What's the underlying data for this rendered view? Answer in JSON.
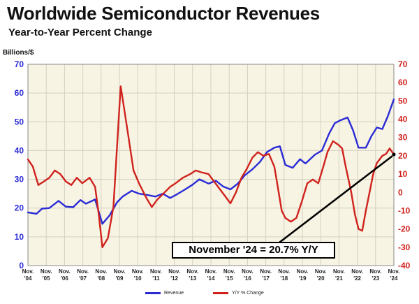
{
  "chart_data": {
    "type": "line",
    "title": "Worldwide Semiconductor Revenues",
    "subtitle": "Year-to-Year Percent Change",
    "y_left_label": "Billions/$",
    "y_left_range": [
      0,
      70
    ],
    "y_left_ticks": [
      "0",
      "10",
      "20",
      "30",
      "40",
      "50",
      "60",
      "70"
    ],
    "y_right_range": [
      -40,
      70
    ],
    "y_right_ticks": [
      "-40",
      "-30",
      "-20",
      "-10",
      "0",
      "10",
      "20",
      "30",
      "40",
      "50",
      "60",
      "70"
    ],
    "x_range": [
      2004.83,
      2024.83
    ],
    "x_ticks": [
      {
        "month": "Nov.",
        "year": "'04"
      },
      {
        "month": "Nov.",
        "year": "'05"
      },
      {
        "month": "Nov.",
        "year": "'06"
      },
      {
        "month": "Nov.",
        "year": "'07"
      },
      {
        "month": "Nov.",
        "year": "'08"
      },
      {
        "month": "Nov.",
        "year": "'09"
      },
      {
        "month": "Nov.",
        "year": "'10"
      },
      {
        "month": "Nov.",
        "year": "'11"
      },
      {
        "month": "Nov.",
        "year": "'12"
      },
      {
        "month": "Nov.",
        "year": "'13"
      },
      {
        "month": "Nov.",
        "year": "'14"
      },
      {
        "month": "Nov.",
        "year": "'15"
      },
      {
        "month": "Nov.",
        "year": "'16"
      },
      {
        "month": "Nov.",
        "year": "'17"
      },
      {
        "month": "Nov.",
        "year": "'18"
      },
      {
        "month": "Nov.",
        "year": "'19"
      },
      {
        "month": "Nov.",
        "year": "'20"
      },
      {
        "month": "Nov.",
        "year": "'21"
      },
      {
        "month": "Nov.",
        "year": "'22"
      },
      {
        "month": "Nov.",
        "year": "'23"
      },
      {
        "month": "Nov.",
        "year": "'24"
      }
    ],
    "grid": true,
    "legend_position": "bottom",
    "series": [
      {
        "name": "Revenue",
        "axis": "left",
        "color": "#2b2bd6",
        "points": [
          [
            2004.83,
            18.5
          ],
          [
            2005.3,
            18.0
          ],
          [
            2005.6,
            19.8
          ],
          [
            2006.0,
            20.0
          ],
          [
            2006.5,
            22.5
          ],
          [
            2006.9,
            20.5
          ],
          [
            2007.3,
            20.3
          ],
          [
            2007.7,
            22.8
          ],
          [
            2008.0,
            21.5
          ],
          [
            2008.5,
            23.0
          ],
          [
            2008.9,
            14.5
          ],
          [
            2009.3,
            17.5
          ],
          [
            2009.7,
            22.0
          ],
          [
            2010.0,
            24.0
          ],
          [
            2010.5,
            26.0
          ],
          [
            2010.9,
            25.0
          ],
          [
            2011.4,
            24.5
          ],
          [
            2011.8,
            24.0
          ],
          [
            2012.2,
            25.0
          ],
          [
            2012.6,
            23.5
          ],
          [
            2012.9,
            24.5
          ],
          [
            2013.3,
            26.0
          ],
          [
            2013.8,
            28.0
          ],
          [
            2014.2,
            30.0
          ],
          [
            2014.7,
            28.5
          ],
          [
            2015.1,
            29.5
          ],
          [
            2015.5,
            27.5
          ],
          [
            2015.9,
            26.5
          ],
          [
            2016.3,
            28.5
          ],
          [
            2016.7,
            31.5
          ],
          [
            2017.1,
            33.5
          ],
          [
            2017.5,
            36.0
          ],
          [
            2017.9,
            39.5
          ],
          [
            2018.3,
            41.0
          ],
          [
            2018.6,
            41.5
          ],
          [
            2018.9,
            35.0
          ],
          [
            2019.3,
            34.0
          ],
          [
            2019.7,
            37.0
          ],
          [
            2020.0,
            35.5
          ],
          [
            2020.5,
            38.5
          ],
          [
            2020.9,
            40.0
          ],
          [
            2021.3,
            46.0
          ],
          [
            2021.6,
            49.5
          ],
          [
            2021.9,
            50.5
          ],
          [
            2022.3,
            51.5
          ],
          [
            2022.6,
            47.0
          ],
          [
            2022.9,
            41.0
          ],
          [
            2023.3,
            41.0
          ],
          [
            2023.6,
            45.0
          ],
          [
            2023.9,
            48.0
          ],
          [
            2024.2,
            47.5
          ],
          [
            2024.5,
            52.0
          ],
          [
            2024.83,
            57.8
          ]
        ]
      },
      {
        "name": "Y/Y % Change",
        "axis": "right",
        "color": "#d0221d",
        "points": [
          [
            2004.83,
            18.0
          ],
          [
            2005.1,
            14.0
          ],
          [
            2005.4,
            4.0
          ],
          [
            2005.7,
            6.0
          ],
          [
            2006.0,
            8.0
          ],
          [
            2006.3,
            12.0
          ],
          [
            2006.6,
            10.0
          ],
          [
            2006.9,
            6.0
          ],
          [
            2007.2,
            4.0
          ],
          [
            2007.5,
            8.0
          ],
          [
            2007.8,
            5.0
          ],
          [
            2008.2,
            8.0
          ],
          [
            2008.5,
            3.0
          ],
          [
            2008.7,
            -12.0
          ],
          [
            2008.9,
            -30.0
          ],
          [
            2009.2,
            -25.0
          ],
          [
            2009.5,
            -8.0
          ],
          [
            2009.7,
            25.0
          ],
          [
            2009.9,
            58.0
          ],
          [
            2010.1,
            45.0
          ],
          [
            2010.3,
            32.0
          ],
          [
            2010.6,
            12.0
          ],
          [
            2010.9,
            5.0
          ],
          [
            2011.3,
            -3.0
          ],
          [
            2011.6,
            -8.0
          ],
          [
            2011.9,
            -4.0
          ],
          [
            2012.3,
            0.0
          ],
          [
            2012.6,
            3.0
          ],
          [
            2012.9,
            5.0
          ],
          [
            2013.3,
            8.0
          ],
          [
            2013.7,
            10.0
          ],
          [
            2014.0,
            12.0
          ],
          [
            2014.3,
            11.0
          ],
          [
            2014.7,
            10.0
          ],
          [
            2015.0,
            6.0
          ],
          [
            2015.3,
            2.0
          ],
          [
            2015.6,
            -2.0
          ],
          [
            2015.9,
            -6.0
          ],
          [
            2016.2,
            0.0
          ],
          [
            2016.5,
            8.0
          ],
          [
            2016.8,
            13.0
          ],
          [
            2017.1,
            19.0
          ],
          [
            2017.4,
            22.0
          ],
          [
            2017.7,
            20.0
          ],
          [
            2018.0,
            21.0
          ],
          [
            2018.3,
            14.0
          ],
          [
            2018.5,
            2.0
          ],
          [
            2018.7,
            -10.0
          ],
          [
            2018.9,
            -14.0
          ],
          [
            2019.2,
            -16.0
          ],
          [
            2019.5,
            -14.0
          ],
          [
            2019.8,
            -5.0
          ],
          [
            2020.1,
            5.0
          ],
          [
            2020.4,
            7.0
          ],
          [
            2020.7,
            5.0
          ],
          [
            2021.0,
            15.0
          ],
          [
            2021.2,
            22.0
          ],
          [
            2021.5,
            28.0
          ],
          [
            2021.8,
            26.0
          ],
          [
            2022.0,
            24.0
          ],
          [
            2022.2,
            14.0
          ],
          [
            2022.5,
            0.0
          ],
          [
            2022.7,
            -12.0
          ],
          [
            2022.9,
            -20.0
          ],
          [
            2023.1,
            -21.0
          ],
          [
            2023.3,
            -10.0
          ],
          [
            2023.5,
            0.0
          ],
          [
            2023.7,
            10.0
          ],
          [
            2023.9,
            16.0
          ],
          [
            2024.2,
            20.0
          ],
          [
            2024.4,
            21.0
          ],
          [
            2024.6,
            24.0
          ],
          [
            2024.83,
            20.7
          ]
        ]
      }
    ],
    "annotation": {
      "text": "November '24 = 20.7% Y/Y",
      "point": [
        2024.83,
        20.7
      ],
      "axis": "right"
    }
  },
  "legend": {
    "revenue": "Revenue",
    "yoy": "Y/Y % Change"
  },
  "colors": {
    "revenue": "#2b2bd6",
    "yoy": "#d0221d",
    "plot_bg": "#f7f4e3",
    "grid": "#d4d0c2"
  }
}
